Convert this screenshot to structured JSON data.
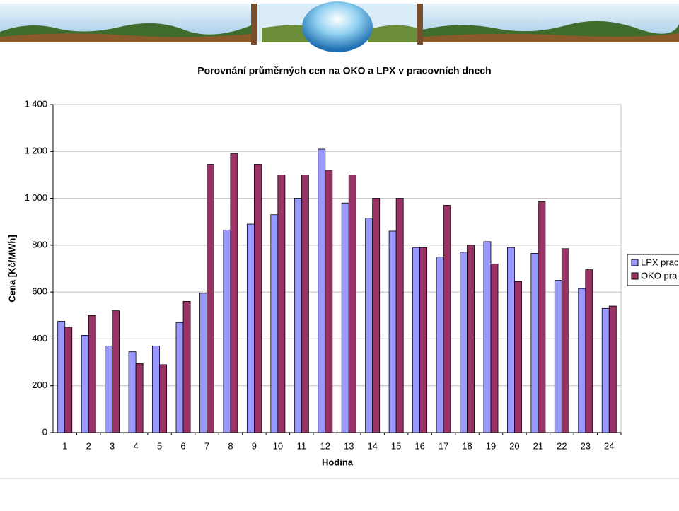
{
  "chart_data": {
    "type": "bar",
    "title": "Porovnání průměrných cen na OKO a LPX v pracovních dnech",
    "x_label": "Hodina",
    "y_label": "Cena [Kč/MWh]",
    "categories": [
      "1",
      "2",
      "3",
      "4",
      "5",
      "6",
      "7",
      "8",
      "9",
      "10",
      "11",
      "12",
      "13",
      "14",
      "15",
      "16",
      "17",
      "18",
      "19",
      "20",
      "21",
      "22",
      "23",
      "24"
    ],
    "series": [
      {
        "name": "LPX prac",
        "color": "#9999ff",
        "values": [
          475,
          415,
          370,
          345,
          370,
          470,
          595,
          865,
          890,
          930,
          1000,
          1210,
          980,
          915,
          860,
          790,
          750,
          770,
          815,
          790,
          765,
          650,
          615,
          530
        ]
      },
      {
        "name": "OKO pra",
        "color": "#993366",
        "values": [
          450,
          500,
          520,
          295,
          290,
          560,
          1145,
          1190,
          1145,
          1100,
          1100,
          1120,
          1100,
          1000,
          1000,
          790,
          970,
          800,
          720,
          645,
          985,
          785,
          695,
          540
        ]
      }
    ],
    "ylim": [
      0,
      1400
    ],
    "yticks": [
      0,
      200,
      400,
      600,
      800,
      {
        "value": 1000,
        "label": "1 000"
      },
      {
        "value": 1200,
        "label": "1 200"
      },
      {
        "value": 1400,
        "label": "1 400"
      }
    ],
    "grid": true,
    "legend": "right"
  }
}
